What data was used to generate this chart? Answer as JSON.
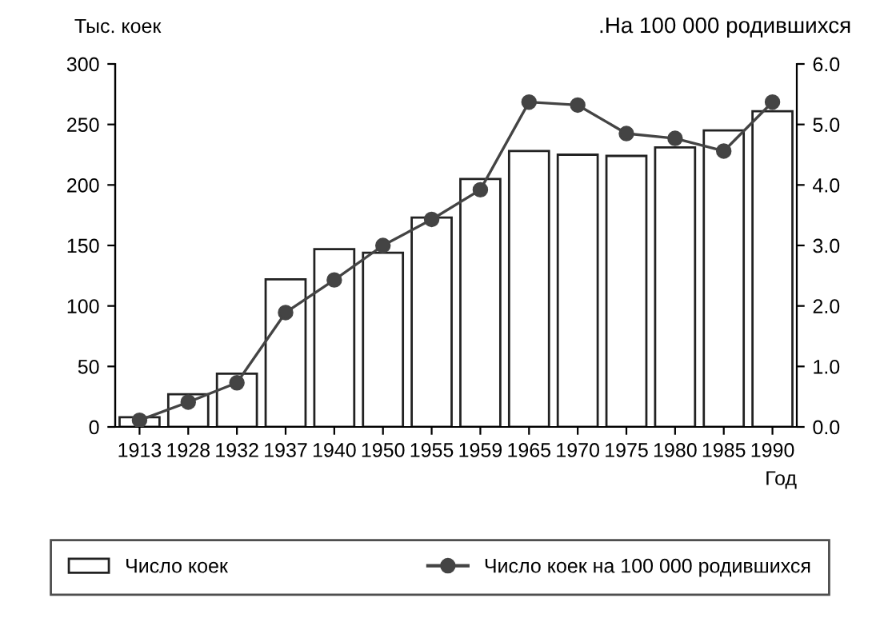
{
  "chart_data": {
    "type": "bar",
    "ylabel": "Тыс. коек",
    "y2label": ".На 100 000 родившихся",
    "xlabel": "Год",
    "categories": [
      "1913",
      "1928",
      "1932",
      "1937",
      "1940",
      "1950",
      "1955",
      "1959",
      "1965",
      "1970",
      "1975",
      "1980",
      "1985",
      "1990"
    ],
    "series": [
      {
        "name": "Число коек",
        "color": "#ffffff",
        "values": [
          8,
          27,
          44,
          122,
          147,
          144,
          173,
          205,
          228,
          225,
          224,
          231,
          245,
          261
        ]
      },
      {
        "name": "Число коек на 100 000 родившихся",
        "type": "line",
        "axis": "y2",
        "color": "#444444",
        "marker": "circle",
        "values": [
          0.11,
          0.41,
          0.73,
          1.89,
          2.43,
          3.0,
          3.43,
          3.92,
          5.37,
          5.32,
          4.85,
          4.77,
          4.56,
          5.37
        ]
      }
    ],
    "ylim": [
      0,
      300
    ],
    "yticks": [
      0,
      50,
      100,
      150,
      200,
      250,
      300
    ],
    "y2lim": [
      0,
      6.0
    ],
    "y2ticks": [
      {
        "value": 0,
        "label": "0.0"
      },
      {
        "value": 1,
        "label": "1.0"
      },
      {
        "value": 2,
        "label": "2.0"
      },
      {
        "value": 3,
        "label": "3.0"
      },
      {
        "value": 4,
        "label": "4.0"
      },
      {
        "value": 5,
        "label": "5.0"
      },
      {
        "value": 6,
        "label": "6.0"
      }
    ],
    "grid": false,
    "legend": "bottom"
  }
}
